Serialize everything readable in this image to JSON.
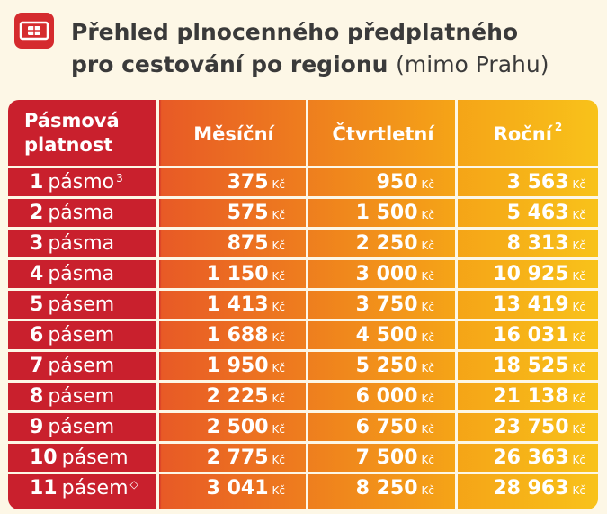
{
  "header": {
    "title_bold_line1": "Přehled plnocenného předplatného",
    "title_bold_line2": "pro cestování po regionu",
    "title_thin": "(mimo Prahu)",
    "logo_icon": "ticket-card-icon"
  },
  "table": {
    "headers": {
      "zone_line1": "Pásmová",
      "zone_line2": "platnost",
      "monthly": "Měsíční",
      "quarterly": "Čtvrtletní",
      "yearly": "Roční",
      "yearly_note": "2"
    },
    "currency": "Kč",
    "rows": [
      {
        "num": "1",
        "word": "pásmo",
        "note": "3",
        "monthly": "375",
        "quarterly": "950",
        "yearly": "3 563"
      },
      {
        "num": "2",
        "word": "pásma",
        "note": "",
        "monthly": "575",
        "quarterly": "1 500",
        "yearly": "5 463"
      },
      {
        "num": "3",
        "word": "pásma",
        "note": "",
        "monthly": "875",
        "quarterly": "2 250",
        "yearly": "8 313"
      },
      {
        "num": "4",
        "word": "pásma",
        "note": "",
        "monthly": "1 150",
        "quarterly": "3 000",
        "yearly": "10 925"
      },
      {
        "num": "5",
        "word": "pásem",
        "note": "",
        "monthly": "1 413",
        "quarterly": "3 750",
        "yearly": "13 419"
      },
      {
        "num": "6",
        "word": "pásem",
        "note": "",
        "monthly": "1 688",
        "quarterly": "4 500",
        "yearly": "16 031"
      },
      {
        "num": "7",
        "word": "pásem",
        "note": "",
        "monthly": "1 950",
        "quarterly": "5 250",
        "yearly": "18 525"
      },
      {
        "num": "8",
        "word": "pásem",
        "note": "",
        "monthly": "2 225",
        "quarterly": "6 000",
        "yearly": "21 138"
      },
      {
        "num": "9",
        "word": "pásem",
        "note": "",
        "monthly": "2 500",
        "quarterly": "6 750",
        "yearly": "23 750"
      },
      {
        "num": "10",
        "word": "pásem",
        "note": "",
        "monthly": "2 775",
        "quarterly": "7 500",
        "yearly": "26 363"
      },
      {
        "num": "11",
        "word": "pásem",
        "note": "◇",
        "monthly": "3 041",
        "quarterly": "8 250",
        "yearly": "28 963"
      }
    ]
  },
  "colors": {
    "zone_col": "#c9202d",
    "monthly_col": "#eb6a22",
    "quarterly_col": "#f29a1a",
    "yearly_col": "#f7bd1b",
    "logo": "#d52b2e",
    "title_text": "#3a3a3a"
  }
}
